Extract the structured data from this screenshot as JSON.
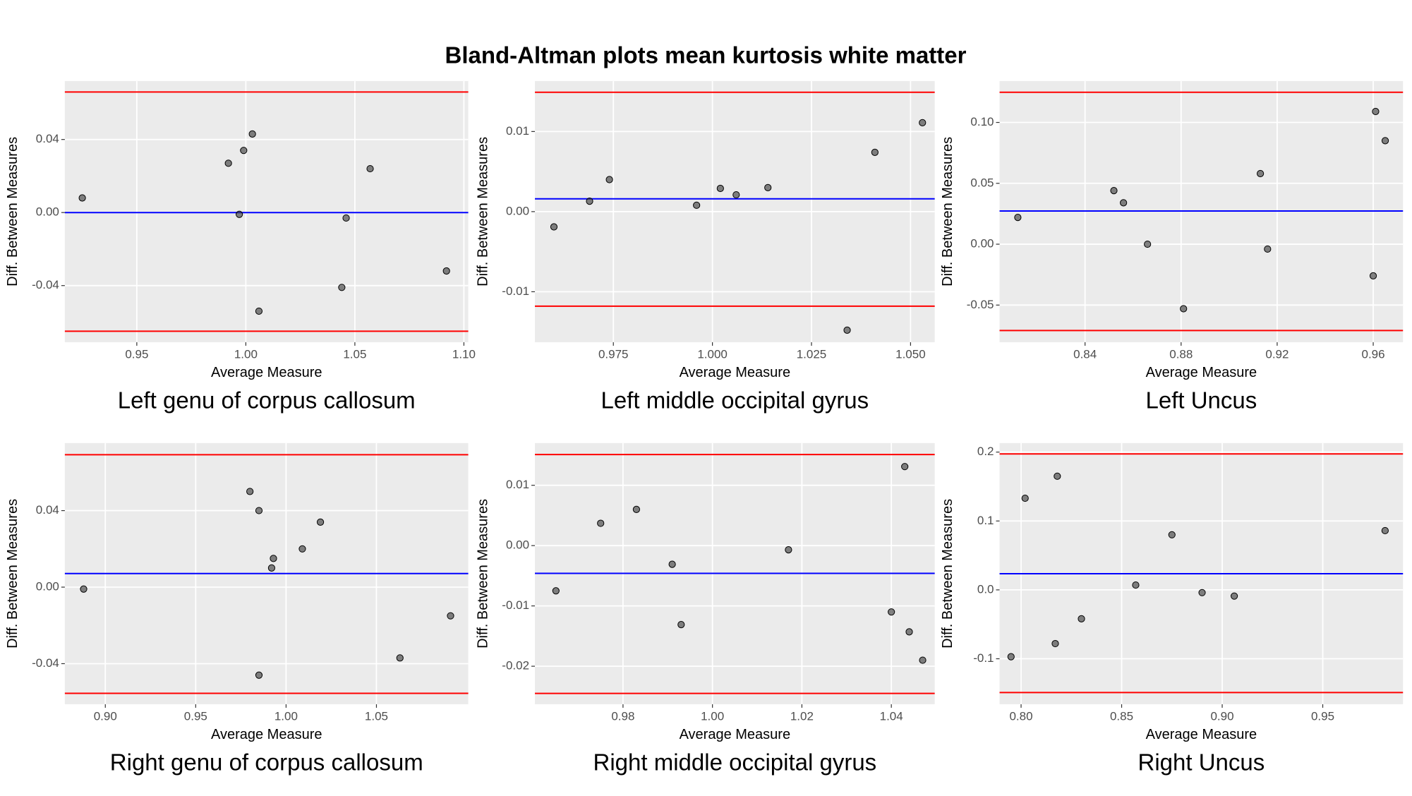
{
  "title": "Bland-Altman plots mean kurtosis white matter",
  "chart_data": [
    {
      "type": "scatter",
      "title": "Left genu of corpus callosum",
      "x_label": "Average Measure",
      "y_label": "Diff. Between Measures",
      "x": [
        0.925,
        0.992,
        0.999,
        1.003,
        0.997,
        1.057,
        1.046,
        1.044,
        1.006,
        1.092
      ],
      "y": [
        0.008,
        0.027,
        0.034,
        0.043,
        -0.001,
        0.024,
        -0.003,
        -0.041,
        -0.054,
        -0.032
      ],
      "xlim": [
        0.917,
        1.102
      ],
      "ylim": [
        -0.071,
        0.072
      ],
      "xticks": [
        0.95,
        {
          "value": 1.0,
          "label": "1.00"
        },
        1.05,
        {
          "value": 1.1,
          "label": "1.10"
        }
      ],
      "yticks": [
        -0.04,
        {
          "value": 0,
          "label": "0.00"
        },
        0.04
      ],
      "lines": [
        {
          "value": 0.066,
          "color": "#ff0000"
        },
        {
          "value": 0.0,
          "color": "#0000ff"
        },
        {
          "value": -0.065,
          "color": "#ff0000"
        }
      ],
      "color": "#333333",
      "grid": true
    },
    {
      "type": "scatter",
      "title": "Left middle occipital gyrus",
      "x_label": "Average Measure",
      "y_label": "Diff. Between Measures",
      "x": [
        0.96,
        0.969,
        0.974,
        0.996,
        1.002,
        1.006,
        1.014,
        1.041,
        1.053,
        1.034
      ],
      "y": [
        -0.0019,
        0.0013,
        0.004,
        0.0008,
        0.0029,
        0.0021,
        0.003,
        0.0074,
        0.0111,
        -0.0148
      ],
      "xlim": [
        0.9552,
        1.0561
      ],
      "ylim": [
        -0.0163,
        0.0163
      ],
      "xticks": [
        0.975,
        {
          "value": 1.0,
          "label": "1.000"
        },
        1.025,
        {
          "value": 1.05,
          "label": "1.050"
        }
      ],
      "yticks": [
        -0.01,
        {
          "value": 0,
          "label": "0.00"
        },
        0.01
      ],
      "lines": [
        {
          "value": 0.0149,
          "color": "#ff0000"
        },
        {
          "value": 0.0016,
          "color": "#0000ff"
        },
        {
          "value": -0.0118,
          "color": "#ff0000"
        }
      ],
      "color": "#333333",
      "grid": true
    },
    {
      "type": "scatter",
      "title": "Left Uncus",
      "x_label": "Average Measure",
      "y_label": "Diff. Between Measures",
      "x": [
        0.812,
        0.852,
        0.856,
        0.866,
        0.881,
        0.913,
        0.916,
        0.961,
        0.965,
        0.96
      ],
      "y": [
        0.022,
        0.044,
        0.034,
        0.0,
        -0.053,
        0.058,
        -0.004,
        0.109,
        0.085,
        -0.026
      ],
      "xlim": [
        0.8044,
        0.9724
      ],
      "ylim": [
        -0.0805,
        0.134
      ],
      "xticks": [
        0.84,
        0.88,
        0.92,
        0.96
      ],
      "yticks": [
        -0.05,
        {
          "value": 0,
          "label": "0.00"
        },
        0.05,
        {
          "value": 0.1,
          "label": "0.10"
        }
      ],
      "lines": [
        {
          "value": 0.1248,
          "color": "#ff0000"
        },
        {
          "value": 0.0273,
          "color": "#0000ff"
        },
        {
          "value": -0.0709,
          "color": "#ff0000"
        }
      ],
      "color": "#333333",
      "grid": true
    },
    {
      "type": "scatter",
      "title": "Right genu of corpus callosum",
      "x_label": "Average Measure",
      "y_label": "Diff. Between Measures",
      "x": [
        0.888,
        0.98,
        0.985,
        1.019,
        1.009,
        0.993,
        0.992,
        1.091,
        1.063,
        0.985
      ],
      "y": [
        -0.001,
        0.05,
        0.04,
        0.034,
        0.02,
        0.015,
        0.01,
        -0.015,
        -0.037,
        -0.046
      ],
      "xlim": [
        0.8776,
        1.1008
      ],
      "ylim": [
        -0.0612,
        0.0753
      ],
      "xticks": [
        {
          "value": 0.9,
          "label": "0.90"
        },
        0.95,
        {
          "value": 1.0,
          "label": "1.00"
        },
        1.05
      ],
      "yticks": [
        -0.04,
        {
          "value": 0,
          "label": "0.00"
        },
        0.04
      ],
      "lines": [
        {
          "value": 0.0692,
          "color": "#ff0000"
        },
        {
          "value": 0.0071,
          "color": "#0000ff"
        },
        {
          "value": -0.0555,
          "color": "#ff0000"
        }
      ],
      "color": "#333333",
      "grid": true
    },
    {
      "type": "scatter",
      "title": "Right middle occipital gyrus",
      "x_label": "Average Measure",
      "y_label": "Diff. Between Measures",
      "x": [
        0.965,
        0.975,
        0.983,
        0.991,
        0.993,
        1.017,
        1.043,
        1.04,
        1.044,
        1.047
      ],
      "y": [
        -0.0075,
        0.0037,
        0.006,
        -0.0031,
        -0.0131,
        -0.0007,
        0.0131,
        -0.011,
        -0.0143,
        -0.019
      ],
      "xlim": [
        0.9603,
        1.0497
      ],
      "ylim": [
        -0.0263,
        0.017
      ],
      "xticks": [
        0.98,
        {
          "value": 1.0,
          "label": "1.00"
        },
        1.02,
        1.04
      ],
      "yticks": [
        -0.02,
        -0.01,
        {
          "value": 0,
          "label": "0.00"
        },
        0.01
      ],
      "lines": [
        {
          "value": 0.0151,
          "color": "#ff0000"
        },
        {
          "value": -0.0046,
          "color": "#0000ff"
        },
        {
          "value": -0.0245,
          "color": "#ff0000"
        }
      ],
      "color": "#333333",
      "grid": true
    },
    {
      "type": "scatter",
      "title": "Right Uncus",
      "x_label": "Average Measure",
      "y_label": "Diff. Between Measures",
      "x": [
        0.795,
        0.802,
        0.818,
        0.817,
        0.83,
        0.857,
        0.875,
        0.89,
        0.906,
        0.981
      ],
      "y": [
        -0.097,
        0.133,
        0.165,
        -0.078,
        -0.042,
        0.007,
        0.08,
        -0.004,
        -0.009,
        0.086
      ],
      "xlim": [
        0.7893,
        0.9899
      ],
      "ylim": [
        -0.166,
        0.2131
      ],
      "xticks": [
        {
          "value": 0.8,
          "label": "0.80"
        },
        0.85,
        {
          "value": 0.9,
          "label": "0.90"
        },
        0.95
      ],
      "yticks": [
        -0.1,
        {
          "value": 0,
          "label": "0.0"
        },
        0.1,
        0.2
      ],
      "lines": [
        {
          "value": 0.1974,
          "color": "#ff0000"
        },
        {
          "value": 0.0235,
          "color": "#0000ff"
        },
        {
          "value": -0.149,
          "color": "#ff0000"
        }
      ],
      "color": "#333333",
      "grid": true
    }
  ]
}
